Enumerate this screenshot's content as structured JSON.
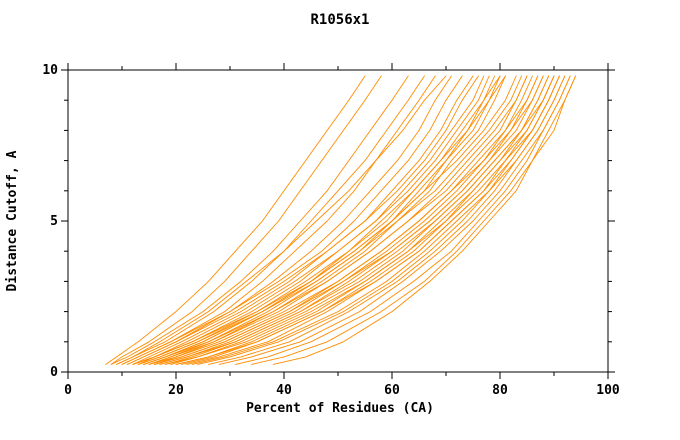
{
  "chart_data": {
    "type": "line",
    "title": "R1056x1",
    "xlabel": "Percent of Residues (CA)",
    "ylabel": "Distance Cutoff, A",
    "xlim": [
      0,
      100
    ],
    "ylim": [
      0,
      10
    ],
    "x_major_ticks": [
      0,
      20,
      40,
      60,
      80,
      100
    ],
    "x_minor_ticks": [
      10,
      30,
      50,
      70,
      90
    ],
    "y_major_ticks": [
      0,
      5,
      10
    ],
    "y_minor_ticks": [
      1,
      2,
      3,
      4,
      6,
      7,
      8,
      9
    ],
    "line_color": "#ff8c00",
    "axis_color": "#000000",
    "background_color": "#ffffff",
    "legend": "none",
    "grid": false,
    "y_grid": [
      0.25,
      0.5,
      1,
      2,
      3,
      4,
      5,
      6,
      7,
      8,
      9,
      9.8
    ],
    "series": [
      [
        7,
        9,
        13,
        20,
        26,
        31,
        36,
        40,
        44,
        48,
        52,
        55
      ],
      [
        8,
        10,
        15,
        23,
        29,
        34,
        39,
        43,
        47,
        51,
        55,
        58
      ],
      [
        8,
        11,
        16,
        25,
        32,
        38,
        43,
        48,
        52,
        56,
        60,
        63
      ],
      [
        9,
        12,
        18,
        27,
        34,
        40,
        45,
        50,
        55,
        59,
        63,
        66
      ],
      [
        10,
        13,
        19,
        29,
        36,
        42,
        48,
        53,
        57,
        61,
        65,
        68
      ],
      [
        9,
        12,
        17,
        26,
        33,
        40,
        46,
        52,
        57,
        62,
        66,
        70
      ],
      [
        11,
        14,
        20,
        30,
        38,
        45,
        51,
        56,
        61,
        65,
        68,
        71
      ],
      [
        10,
        13,
        19,
        30,
        39,
        47,
        53,
        58,
        63,
        67,
        70,
        73
      ],
      [
        12,
        15,
        21,
        32,
        41,
        48,
        55,
        60,
        65,
        69,
        72,
        75
      ],
      [
        11,
        14,
        20,
        31,
        40,
        48,
        55,
        61,
        66,
        70,
        73,
        76
      ],
      [
        13,
        16,
        23,
        34,
        43,
        50,
        57,
        62,
        67,
        71,
        75,
        77
      ],
      [
        12,
        16,
        22,
        33,
        42,
        50,
        57,
        63,
        68,
        72,
        76,
        78
      ],
      [
        14,
        18,
        25,
        36,
        45,
        52,
        59,
        64,
        69,
        73,
        77,
        79
      ],
      [
        13,
        17,
        24,
        35,
        44,
        52,
        58,
        64,
        69,
        74,
        77,
        80
      ],
      [
        15,
        19,
        26,
        37,
        46,
        54,
        60,
        66,
        70,
        75,
        78,
        80
      ],
      [
        14,
        18,
        25,
        36,
        45,
        53,
        60,
        65,
        70,
        74,
        78,
        81
      ],
      [
        16,
        20,
        27,
        38,
        47,
        55,
        61,
        67,
        71,
        76,
        79,
        81
      ],
      [
        12,
        16,
        23,
        35,
        45,
        53,
        60,
        66,
        72,
        77,
        81,
        83
      ],
      [
        13,
        17,
        24,
        36,
        46,
        54,
        61,
        68,
        73,
        78,
        82,
        84
      ],
      [
        15,
        19,
        27,
        39,
        48,
        56,
        63,
        69,
        74,
        79,
        83,
        85
      ],
      [
        14,
        18,
        26,
        38,
        48,
        56,
        63,
        70,
        75,
        80,
        83,
        85
      ],
      [
        16,
        21,
        29,
        41,
        50,
        58,
        65,
        71,
        76,
        81,
        84,
        86
      ],
      [
        17,
        22,
        30,
        42,
        51,
        59,
        66,
        72,
        77,
        81,
        85,
        87
      ],
      [
        15,
        20,
        28,
        40,
        50,
        58,
        65,
        71,
        77,
        82,
        85,
        87
      ],
      [
        18,
        23,
        31,
        43,
        52,
        60,
        67,
        73,
        78,
        82,
        86,
        88
      ],
      [
        16,
        21,
        29,
        41,
        51,
        60,
        67,
        73,
        78,
        83,
        86,
        88
      ],
      [
        19,
        24,
        32,
        44,
        54,
        62,
        68,
        74,
        79,
        84,
        87,
        89
      ],
      [
        17,
        22,
        31,
        43,
        53,
        61,
        68,
        74,
        79,
        84,
        87,
        89
      ],
      [
        20,
        26,
        34,
        46,
        55,
        63,
        69,
        75,
        80,
        84,
        88,
        90
      ],
      [
        18,
        24,
        33,
        45,
        55,
        63,
        70,
        75,
        80,
        85,
        88,
        90
      ],
      [
        21,
        27,
        35,
        47,
        56,
        64,
        70,
        76,
        81,
        85,
        88,
        90
      ],
      [
        22,
        28,
        37,
        48,
        57,
        65,
        71,
        77,
        81,
        86,
        89,
        91
      ],
      [
        20,
        26,
        35,
        47,
        57,
        65,
        71,
        77,
        82,
        86,
        89,
        91
      ],
      [
        23,
        29,
        38,
        50,
        59,
        66,
        72,
        78,
        82,
        86,
        89,
        91
      ],
      [
        24,
        30,
        39,
        51,
        60,
        67,
        73,
        78,
        83,
        87,
        90,
        92
      ],
      [
        26,
        32,
        41,
        52,
        61,
        68,
        74,
        79,
        83,
        87,
        90,
        92
      ],
      [
        28,
        34,
        43,
        54,
        62,
        69,
        75,
        80,
        84,
        88,
        91,
        93
      ],
      [
        31,
        37,
        45,
        56,
        64,
        71,
        76,
        81,
        85,
        88,
        91,
        93
      ],
      [
        34,
        40,
        48,
        58,
        66,
        72,
        77,
        82,
        86,
        89,
        92,
        94
      ],
      [
        38,
        44,
        51,
        60,
        67,
        73,
        78,
        83,
        86,
        90,
        92,
        94
      ]
    ]
  }
}
